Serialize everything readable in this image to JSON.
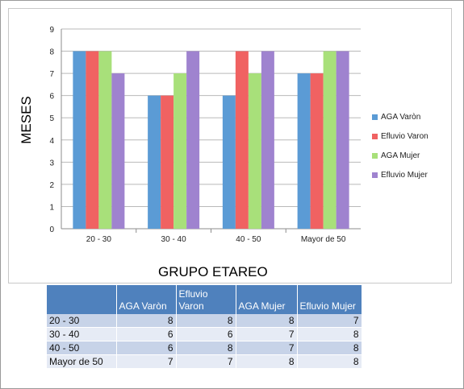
{
  "chart_data": {
    "type": "bar",
    "categories": [
      "20 - 30",
      "30 - 40",
      "40 - 50",
      "Mayor de 50"
    ],
    "series": [
      {
        "name": "AGA Varòn",
        "color": "#5b9bd5",
        "values": [
          8,
          6,
          6,
          7
        ]
      },
      {
        "name": "Efluvio Varon",
        "color": "#f06262",
        "values": [
          8,
          6,
          8,
          7
        ]
      },
      {
        "name": "AGA Mujer",
        "color": "#a8e07a",
        "values": [
          8,
          7,
          7,
          8
        ]
      },
      {
        "name": "Efluvio Mujer",
        "color": "#9f83cf",
        "values": [
          7,
          8,
          8,
          8
        ]
      }
    ],
    "xlabel": "GRUPO ETAREO",
    "ylabel": "MESES",
    "ylim": [
      0,
      9
    ],
    "yticks": [
      "0",
      "1",
      "2",
      "3",
      "4",
      "5",
      "6",
      "7",
      "8",
      "9"
    ],
    "grid": true,
    "legend_position": "right"
  },
  "table": {
    "headers": [
      "",
      "AGA Varòn",
      "Efluvio Varon",
      "AGA Mujer",
      "Efluvio Mujer"
    ],
    "rows": [
      [
        "20 - 30",
        "8",
        "8",
        "8",
        "7"
      ],
      [
        "30 - 40",
        "6",
        "6",
        "7",
        "8"
      ],
      [
        "40 - 50",
        "6",
        "8",
        "7",
        "8"
      ],
      [
        "Mayor de 50",
        "7",
        "7",
        "8",
        "8"
      ]
    ]
  }
}
